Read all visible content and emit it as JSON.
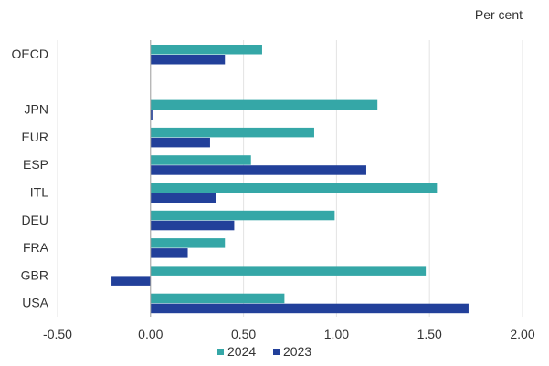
{
  "chart_data": {
    "type": "bar",
    "orientation": "horizontal",
    "unit_label": "Per cent",
    "categories": [
      "OECD",
      "",
      "JPN",
      "EUR",
      "ESP",
      "ITL",
      "DEU",
      "FRA",
      "GBR",
      "USA"
    ],
    "series": [
      {
        "name": "2024",
        "color": "#35a7a7",
        "values": [
          0.6,
          null,
          1.22,
          0.88,
          0.54,
          1.54,
          0.99,
          0.4,
          1.48,
          0.72
        ]
      },
      {
        "name": "2023",
        "color": "#22409a",
        "values": [
          0.4,
          null,
          0.01,
          0.32,
          1.16,
          0.35,
          0.45,
          0.2,
          -0.21,
          1.71
        ]
      }
    ],
    "xlim": [
      -0.5,
      2.0
    ],
    "xticks": [
      "-0.50",
      "0.00",
      "0.50",
      "1.00",
      "1.50",
      "2.00"
    ],
    "grid": "vertical",
    "legend_position": "bottom"
  }
}
